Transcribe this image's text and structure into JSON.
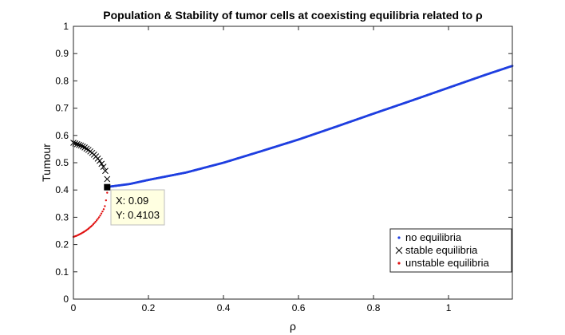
{
  "chart_data": {
    "type": "scatter",
    "title": "Population & Stability of tumor cells at coexisting equilibria related to ρ",
    "xlabel": "ρ",
    "ylabel": "Tumour",
    "xlim": [
      0,
      1.17
    ],
    "ylim": [
      0,
      1
    ],
    "x_ticks": [
      0,
      0.2,
      0.4,
      0.6,
      0.8,
      1
    ],
    "x_tick_labels": [
      "0",
      "0.2",
      "0.4",
      "0.6",
      "0.8",
      "1"
    ],
    "y_ticks": [
      0,
      0.1,
      0.2,
      0.3,
      0.4,
      0.5,
      0.6,
      0.7,
      0.8,
      0.9,
      1
    ],
    "y_tick_labels": [
      "0",
      "0.1",
      "0.2",
      "0.3",
      "0.4",
      "0.5",
      "0.6",
      "0.7",
      "0.8",
      "0.9",
      "1"
    ],
    "grid": false,
    "legend_position": "bottom-right",
    "series": [
      {
        "name": "no equilibria",
        "marker": "dot",
        "color": "#1f3fe0",
        "x": [
          0.09,
          0.1,
          0.15,
          0.2,
          0.3,
          0.4,
          0.5,
          0.6,
          0.7,
          0.8,
          0.9,
          1.0,
          1.1,
          1.17
        ],
        "y": [
          0.41,
          0.413,
          0.422,
          0.437,
          0.464,
          0.5,
          0.542,
          0.585,
          0.632,
          0.68,
          0.727,
          0.775,
          0.823,
          0.855
        ]
      },
      {
        "name": "stable equilibria",
        "marker": "x",
        "color": "#000000",
        "x": [
          0,
          0.01,
          0.02,
          0.03,
          0.04,
          0.05,
          0.06,
          0.07,
          0.08,
          0.085,
          0.09
        ],
        "y": [
          0.573,
          0.568,
          0.563,
          0.556,
          0.547,
          0.536,
          0.523,
          0.507,
          0.485,
          0.47,
          0.44
        ]
      },
      {
        "name": "unstable equilibria",
        "marker": "dot",
        "color": "#e01010",
        "x": [
          0,
          0.01,
          0.02,
          0.03,
          0.04,
          0.05,
          0.06,
          0.07,
          0.08,
          0.085,
          0.09
        ],
        "y": [
          0.228,
          0.233,
          0.24,
          0.248,
          0.258,
          0.27,
          0.285,
          0.303,
          0.327,
          0.345,
          0.39
        ]
      }
    ],
    "datatip": {
      "x": 0.09,
      "y": 0.4103,
      "x_label": "X: 0.09",
      "y_label": "Y: 0.4103"
    }
  }
}
